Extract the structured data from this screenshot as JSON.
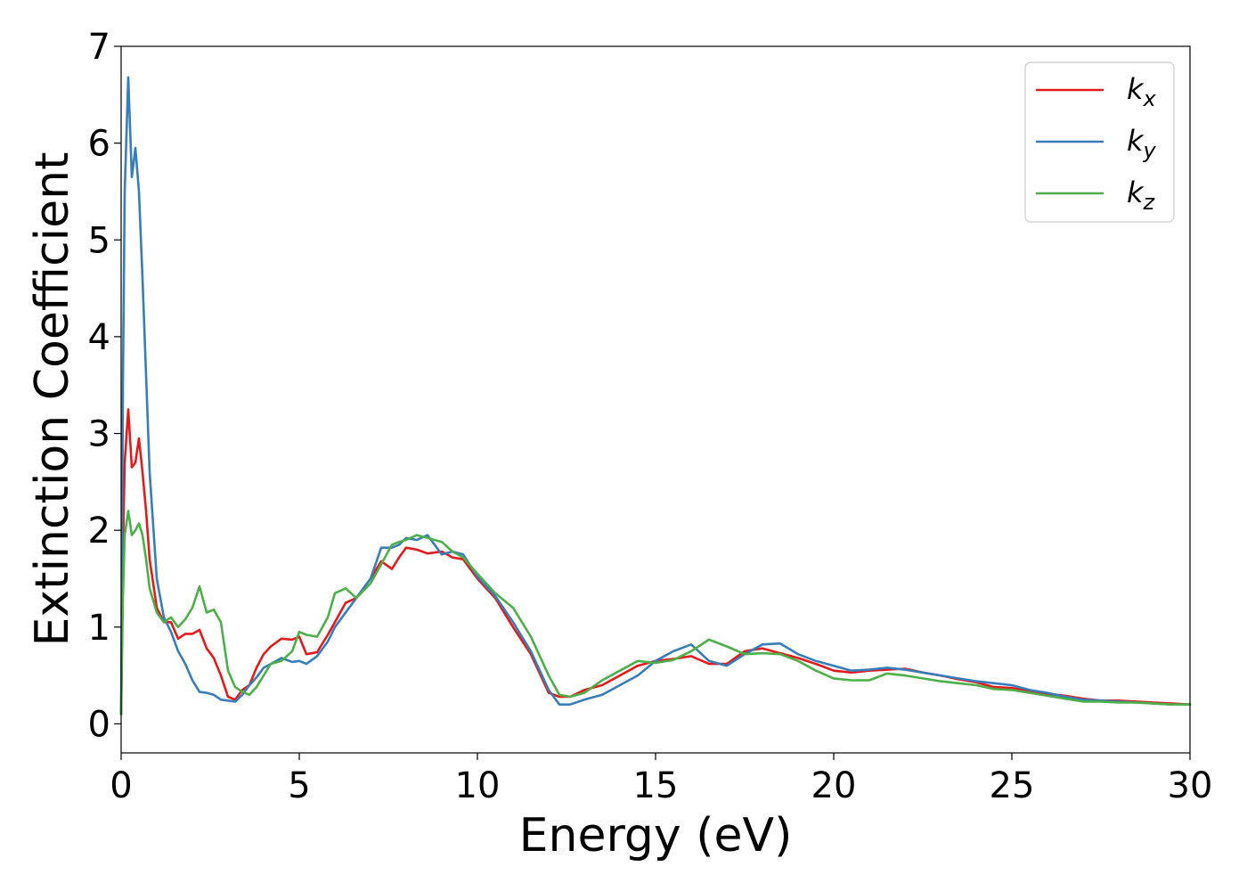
{
  "chart_data": {
    "type": "line",
    "xlabel": "Energy (eV)",
    "ylabel": "Extinction Coefficient",
    "xlim": [
      0,
      30
    ],
    "ylim": [
      -0.3,
      7
    ],
    "x_ticks": [
      0,
      5,
      10,
      15,
      20,
      25,
      30
    ],
    "y_ticks": [
      0,
      1,
      2,
      3,
      4,
      5,
      6,
      7
    ],
    "x_tick_labels": [
      "0",
      "5",
      "10",
      "15",
      "20",
      "25",
      "30"
    ],
    "y_tick_labels": [
      "0",
      "1",
      "2",
      "3",
      "4",
      "5",
      "6",
      "7"
    ],
    "grid": false,
    "legend_position": "top-right",
    "series": [
      {
        "name": "k",
        "subscript": "x",
        "color": "#e41a1c",
        "x": [
          0,
          0.05,
          0.1,
          0.2,
          0.3,
          0.4,
          0.5,
          0.6,
          0.7,
          0.8,
          1.0,
          1.2,
          1.4,
          1.6,
          1.8,
          2.0,
          2.2,
          2.4,
          2.6,
          2.8,
          3.0,
          3.2,
          3.4,
          3.6,
          3.8,
          4.0,
          4.2,
          4.5,
          4.8,
          5.0,
          5.2,
          5.5,
          5.8,
          6.0,
          6.3,
          6.6,
          7.0,
          7.3,
          7.6,
          7.8,
          8.0,
          8.3,
          8.6,
          9.0,
          9.3,
          9.6,
          10.0,
          10.5,
          11.0,
          11.5,
          12.0,
          12.3,
          12.6,
          13.0,
          13.5,
          14.0,
          14.5,
          15.0,
          15.5,
          16.0,
          16.5,
          17.0,
          17.5,
          18.0,
          18.5,
          19.0,
          19.5,
          20.0,
          20.5,
          21.0,
          21.5,
          22.0,
          22.5,
          23.0,
          23.5,
          24.0,
          24.5,
          25.0,
          25.5,
          26.0,
          26.5,
          27.0,
          27.5,
          28.0,
          28.5,
          29.0,
          29.5,
          30.0
        ],
        "values": [
          0.1,
          1.8,
          2.7,
          3.25,
          2.65,
          2.7,
          2.95,
          2.6,
          2.2,
          1.7,
          1.2,
          1.05,
          1.05,
          0.88,
          0.93,
          0.93,
          0.97,
          0.78,
          0.68,
          0.5,
          0.28,
          0.25,
          0.35,
          0.4,
          0.58,
          0.72,
          0.8,
          0.88,
          0.87,
          0.9,
          0.72,
          0.74,
          0.92,
          1.05,
          1.25,
          1.3,
          1.5,
          1.68,
          1.6,
          1.72,
          1.82,
          1.8,
          1.76,
          1.78,
          1.72,
          1.7,
          1.5,
          1.3,
          1.0,
          0.72,
          0.32,
          0.28,
          0.28,
          0.35,
          0.4,
          0.5,
          0.6,
          0.65,
          0.67,
          0.7,
          0.62,
          0.62,
          0.75,
          0.78,
          0.73,
          0.68,
          0.62,
          0.55,
          0.53,
          0.55,
          0.56,
          0.57,
          0.53,
          0.5,
          0.46,
          0.43,
          0.38,
          0.37,
          0.34,
          0.31,
          0.29,
          0.26,
          0.24,
          0.24,
          0.23,
          0.22,
          0.21,
          0.2
        ]
      },
      {
        "name": "k",
        "subscript": "y",
        "color": "#377eb8",
        "x": [
          0,
          0.05,
          0.1,
          0.2,
          0.3,
          0.4,
          0.5,
          0.6,
          0.7,
          0.8,
          1.0,
          1.2,
          1.4,
          1.6,
          1.8,
          2.0,
          2.2,
          2.4,
          2.6,
          2.8,
          3.0,
          3.2,
          3.4,
          3.6,
          3.8,
          4.0,
          4.2,
          4.5,
          4.8,
          5.0,
          5.2,
          5.5,
          5.8,
          6.0,
          6.3,
          6.6,
          7.0,
          7.3,
          7.6,
          7.8,
          8.0,
          8.3,
          8.6,
          9.0,
          9.3,
          9.6,
          10.0,
          10.5,
          11.0,
          11.5,
          12.0,
          12.3,
          12.6,
          13.0,
          13.5,
          14.0,
          14.5,
          15.0,
          15.5,
          16.0,
          16.5,
          17.0,
          17.5,
          18.0,
          18.5,
          19.0,
          19.5,
          20.0,
          20.5,
          21.0,
          21.5,
          22.0,
          22.5,
          23.0,
          23.5,
          24.0,
          24.5,
          25.0,
          25.5,
          26.0,
          26.5,
          27.0,
          27.5,
          28.0,
          28.5,
          29.0,
          29.5,
          30.0
        ],
        "values": [
          0.1,
          3.5,
          5.5,
          6.68,
          5.65,
          5.95,
          5.5,
          4.6,
          3.6,
          2.6,
          1.5,
          1.1,
          0.95,
          0.75,
          0.62,
          0.45,
          0.33,
          0.32,
          0.3,
          0.25,
          0.24,
          0.23,
          0.3,
          0.4,
          0.48,
          0.58,
          0.62,
          0.68,
          0.64,
          0.65,
          0.62,
          0.7,
          0.85,
          1.0,
          1.15,
          1.3,
          1.5,
          1.82,
          1.82,
          1.85,
          1.92,
          1.9,
          1.95,
          1.75,
          1.78,
          1.75,
          1.52,
          1.32,
          1.05,
          0.75,
          0.35,
          0.2,
          0.2,
          0.25,
          0.3,
          0.4,
          0.5,
          0.65,
          0.75,
          0.82,
          0.65,
          0.6,
          0.72,
          0.82,
          0.83,
          0.72,
          0.65,
          0.6,
          0.55,
          0.56,
          0.58,
          0.56,
          0.53,
          0.5,
          0.47,
          0.44,
          0.42,
          0.4,
          0.35,
          0.32,
          0.28,
          0.25,
          0.24,
          0.23,
          0.22,
          0.21,
          0.2,
          0.2
        ]
      },
      {
        "name": "k",
        "subscript": "z",
        "color": "#4daf4a",
        "x": [
          0,
          0.05,
          0.1,
          0.2,
          0.3,
          0.4,
          0.5,
          0.6,
          0.7,
          0.8,
          1.0,
          1.2,
          1.4,
          1.6,
          1.8,
          2.0,
          2.2,
          2.4,
          2.6,
          2.8,
          3.0,
          3.2,
          3.4,
          3.6,
          3.8,
          4.0,
          4.2,
          4.5,
          4.8,
          5.0,
          5.2,
          5.5,
          5.8,
          6.0,
          6.3,
          6.6,
          7.0,
          7.3,
          7.6,
          7.8,
          8.0,
          8.3,
          8.6,
          9.0,
          9.3,
          9.6,
          10.0,
          10.5,
          11.0,
          11.5,
          12.0,
          12.3,
          12.6,
          13.0,
          13.5,
          14.0,
          14.5,
          15.0,
          15.5,
          16.0,
          16.5,
          17.0,
          17.5,
          18.0,
          18.5,
          19.0,
          19.5,
          20.0,
          20.5,
          21.0,
          21.5,
          22.0,
          22.5,
          23.0,
          23.5,
          24.0,
          24.5,
          25.0,
          25.5,
          26.0,
          26.5,
          27.0,
          27.5,
          28.0,
          28.5,
          29.0,
          29.5,
          30.0
        ],
        "values": [
          0.1,
          1.3,
          1.95,
          2.2,
          1.95,
          2.0,
          2.07,
          1.95,
          1.7,
          1.4,
          1.15,
          1.05,
          1.1,
          1.0,
          1.08,
          1.2,
          1.42,
          1.15,
          1.18,
          1.05,
          0.55,
          0.38,
          0.33,
          0.3,
          0.38,
          0.5,
          0.62,
          0.65,
          0.75,
          0.95,
          0.92,
          0.9,
          1.1,
          1.35,
          1.4,
          1.3,
          1.45,
          1.65,
          1.85,
          1.88,
          1.9,
          1.95,
          1.92,
          1.88,
          1.78,
          1.72,
          1.55,
          1.35,
          1.2,
          0.9,
          0.5,
          0.3,
          0.28,
          0.32,
          0.45,
          0.55,
          0.65,
          0.63,
          0.66,
          0.75,
          0.87,
          0.8,
          0.72,
          0.73,
          0.72,
          0.65,
          0.55,
          0.47,
          0.45,
          0.45,
          0.52,
          0.5,
          0.47,
          0.44,
          0.42,
          0.4,
          0.36,
          0.35,
          0.32,
          0.29,
          0.26,
          0.23,
          0.23,
          0.22,
          0.22,
          0.21,
          0.2,
          0.2
        ]
      }
    ]
  }
}
